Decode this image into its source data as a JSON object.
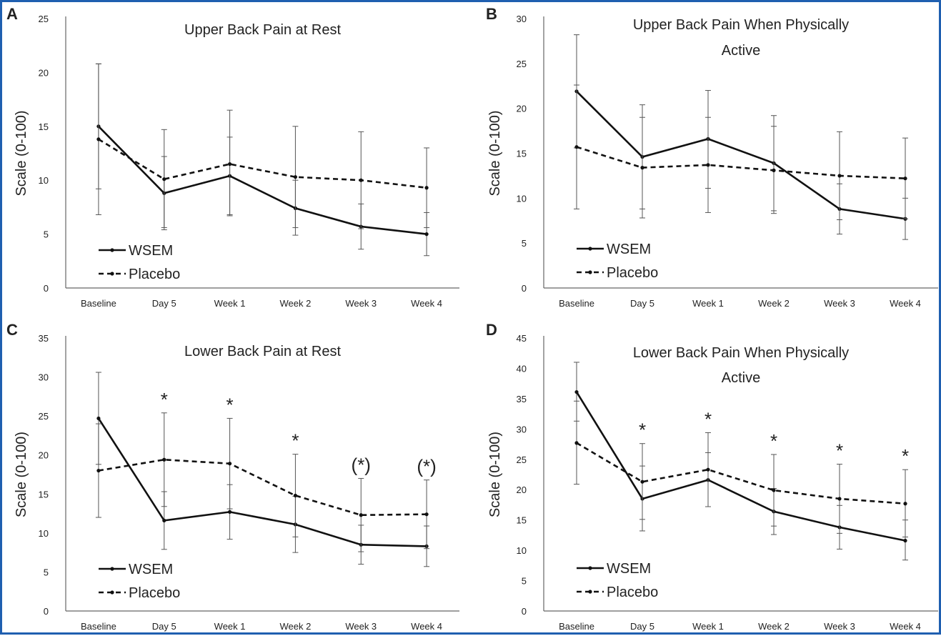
{
  "chart_data": [
    {
      "type": "line",
      "panel": "A",
      "title_lines": [
        "Upper Back Pain at Rest"
      ],
      "ylabel": "Scale (0-100)",
      "categories": [
        "Baseline",
        "Day 5",
        "Week 1",
        "Week 2",
        "Week 3",
        "Week 4"
      ],
      "ylim": [
        0,
        25
      ],
      "yticks": [
        0,
        5,
        10,
        15,
        20,
        25
      ],
      "series": [
        {
          "name": "WSEM",
          "style": "solid",
          "values": [
            15.0,
            8.8,
            10.4,
            7.4,
            5.7,
            5.0
          ],
          "err_low": [
            9.2,
            5.4,
            6.7,
            4.9,
            3.6,
            3.0
          ],
          "err_high": [
            20.8,
            12.2,
            14.0,
            10.0,
            7.8,
            7.0
          ]
        },
        {
          "name": "Placebo",
          "style": "dashed",
          "values": [
            13.8,
            10.1,
            11.5,
            10.3,
            10.0,
            9.3
          ],
          "err_low": [
            6.8,
            5.6,
            6.8,
            5.6,
            5.5,
            5.6
          ],
          "err_high": [
            20.8,
            14.7,
            16.5,
            15.0,
            14.5,
            13.0
          ]
        }
      ],
      "annotations": [
        "",
        "",
        "",
        "",
        "",
        ""
      ]
    },
    {
      "type": "line",
      "panel": "B",
      "title_lines": [
        "Upper Back Pain When Physically",
        "Active"
      ],
      "ylabel": "Scale (0-100)",
      "categories": [
        "Baseline",
        "Day 5",
        "Week 1",
        "Week 2",
        "Week 3",
        "Week 4"
      ],
      "ylim": [
        0,
        30
      ],
      "yticks": [
        0,
        5,
        10,
        15,
        20,
        25,
        30
      ],
      "series": [
        {
          "name": "WSEM",
          "style": "solid",
          "values": [
            21.9,
            14.6,
            16.6,
            13.9,
            8.8,
            7.7
          ],
          "err_low": [
            15.6,
            8.8,
            11.1,
            8.6,
            6.0,
            5.4
          ],
          "err_high": [
            28.2,
            20.4,
            22.0,
            19.2,
            11.6,
            10.0
          ]
        },
        {
          "name": "Placebo",
          "style": "dashed",
          "values": [
            15.7,
            13.4,
            13.7,
            13.1,
            12.5,
            12.2
          ],
          "err_low": [
            8.8,
            7.8,
            8.4,
            8.3,
            7.6,
            7.7
          ],
          "err_high": [
            22.6,
            19.0,
            19.0,
            18.0,
            17.4,
            16.7
          ]
        }
      ],
      "annotations": [
        "",
        "",
        "",
        "",
        "",
        ""
      ]
    },
    {
      "type": "line",
      "panel": "C",
      "title_lines": [
        "Lower Back Pain at Rest"
      ],
      "ylabel": "Scale (0-100)",
      "categories": [
        "Baseline",
        "Day 5",
        "Week 1",
        "Week 2",
        "Week 3",
        "Week 4"
      ],
      "ylim": [
        0,
        35
      ],
      "yticks": [
        0,
        5,
        10,
        15,
        20,
        25,
        30,
        35
      ],
      "series": [
        {
          "name": "WSEM",
          "style": "solid",
          "values": [
            24.7,
            11.6,
            12.7,
            11.1,
            8.5,
            8.3
          ],
          "err_low": [
            18.8,
            7.9,
            9.2,
            7.5,
            6.0,
            5.7
          ],
          "err_high": [
            30.6,
            15.3,
            16.2,
            14.7,
            11.0,
            10.9
          ]
        },
        {
          "name": "Placebo",
          "style": "dashed",
          "values": [
            18.0,
            19.4,
            18.9,
            14.8,
            12.3,
            12.4
          ],
          "err_low": [
            12.0,
            13.4,
            13.1,
            9.5,
            7.6,
            8.0
          ],
          "err_high": [
            24.0,
            25.4,
            24.7,
            20.1,
            17.0,
            16.8
          ]
        }
      ],
      "annotations": [
        "",
        "*",
        "*",
        "*",
        "(*)",
        "(*)"
      ]
    },
    {
      "type": "line",
      "panel": "D",
      "title_lines": [
        "Lower Back Pain When Physically",
        "Active"
      ],
      "ylabel": "Scale (0-100)",
      "categories": [
        "Baseline",
        "Day 5",
        "Week 1",
        "Week 2",
        "Week 3",
        "Week 4"
      ],
      "ylim": [
        0,
        45
      ],
      "yticks": [
        0,
        5,
        10,
        15,
        20,
        25,
        30,
        35,
        40,
        45
      ],
      "series": [
        {
          "name": "WSEM",
          "style": "solid",
          "values": [
            36.1,
            18.5,
            21.6,
            16.4,
            13.8,
            11.6
          ],
          "err_low": [
            31.3,
            13.2,
            17.2,
            12.6,
            10.2,
            8.4
          ],
          "err_high": [
            41.0,
            23.9,
            26.1,
            20.2,
            17.4,
            15.0
          ]
        },
        {
          "name": "Placebo",
          "style": "dashed",
          "values": [
            27.7,
            21.3,
            23.3,
            19.9,
            18.5,
            17.7
          ],
          "err_low": [
            20.9,
            15.1,
            17.2,
            14.0,
            12.8,
            12.2
          ],
          "err_high": [
            34.6,
            27.6,
            29.4,
            25.8,
            24.2,
            23.3
          ]
        }
      ],
      "annotations": [
        "",
        "*",
        "*",
        "*",
        "*",
        "*"
      ]
    }
  ]
}
